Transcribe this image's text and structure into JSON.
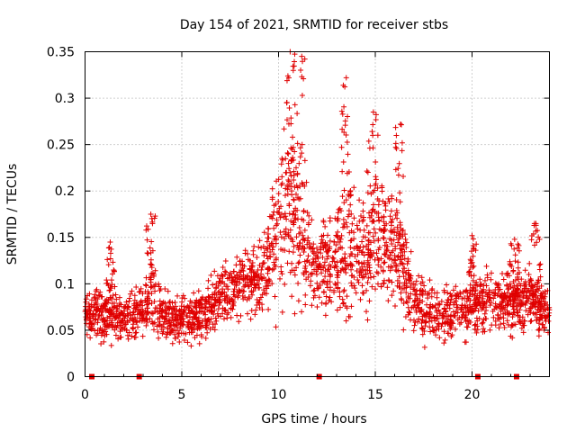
{
  "chart_data": {
    "type": "scatter",
    "title": "Day 154 of 2021, SRMTID for receiver stbs",
    "xlabel": "GPS time / hours",
    "ylabel": "SRMTID / TECUs",
    "xlim": [
      0,
      24
    ],
    "ylim": [
      0,
      0.35
    ],
    "x_ticks": [
      0,
      5,
      10,
      15,
      20
    ],
    "x_tick_labels": [
      "0",
      "5",
      "10",
      "15",
      "20"
    ],
    "y_ticks": [
      0,
      0.05,
      0.1,
      0.15,
      0.2,
      0.25,
      0.3,
      0.35
    ],
    "y_tick_labels": [
      "0",
      "0.05",
      "0.1",
      "0.15",
      "0.2",
      "0.25",
      "0.3",
      "0.35"
    ],
    "grid": true,
    "marker": "+",
    "series": [
      {
        "name": "SRMTID",
        "color": "#e00000",
        "marker": "+",
        "envelope": [
          {
            "x": 0.0,
            "base": 0.07,
            "spread": 0.035
          },
          {
            "x": 1.0,
            "base": 0.065,
            "spread": 0.04
          },
          {
            "x": 2.0,
            "base": 0.065,
            "spread": 0.035
          },
          {
            "x": 3.0,
            "base": 0.07,
            "spread": 0.035
          },
          {
            "x": 3.5,
            "base": 0.09,
            "spread": 0.06
          },
          {
            "x": 4.0,
            "base": 0.065,
            "spread": 0.035
          },
          {
            "x": 5.0,
            "base": 0.06,
            "spread": 0.035
          },
          {
            "x": 6.0,
            "base": 0.065,
            "spread": 0.04
          },
          {
            "x": 7.0,
            "base": 0.085,
            "spread": 0.045
          },
          {
            "x": 8.0,
            "base": 0.1,
            "spread": 0.05
          },
          {
            "x": 9.0,
            "base": 0.105,
            "spread": 0.05
          },
          {
            "x": 10.0,
            "base": 0.16,
            "spread": 0.12
          },
          {
            "x": 10.5,
            "base": 0.19,
            "spread": 0.14
          },
          {
            "x": 11.0,
            "base": 0.15,
            "spread": 0.12
          },
          {
            "x": 12.0,
            "base": 0.11,
            "spread": 0.06
          },
          {
            "x": 13.0,
            "base": 0.13,
            "spread": 0.09
          },
          {
            "x": 14.0,
            "base": 0.13,
            "spread": 0.09
          },
          {
            "x": 15.0,
            "base": 0.15,
            "spread": 0.1
          },
          {
            "x": 16.0,
            "base": 0.14,
            "spread": 0.09
          },
          {
            "x": 17.0,
            "base": 0.08,
            "spread": 0.045
          },
          {
            "x": 18.0,
            "base": 0.065,
            "spread": 0.04
          },
          {
            "x": 19.0,
            "base": 0.07,
            "spread": 0.04
          },
          {
            "x": 20.0,
            "base": 0.075,
            "spread": 0.045
          },
          {
            "x": 21.0,
            "base": 0.085,
            "spread": 0.045
          },
          {
            "x": 22.0,
            "base": 0.08,
            "spread": 0.045
          },
          {
            "x": 23.0,
            "base": 0.085,
            "spread": 0.05
          },
          {
            "x": 24.0,
            "base": 0.065,
            "spread": 0.03
          }
        ],
        "peaks": [
          {
            "x": 10.6,
            "y": 0.35
          },
          {
            "x": 11.2,
            "y": 0.345
          },
          {
            "x": 13.5,
            "y": 0.322
          },
          {
            "x": 14.9,
            "y": 0.285
          },
          {
            "x": 16.3,
            "y": 0.272
          },
          {
            "x": 3.4,
            "y": 0.175
          },
          {
            "x": 23.3,
            "y": 0.165
          },
          {
            "x": 20.0,
            "y": 0.152
          },
          {
            "x": 1.3,
            "y": 0.145
          },
          {
            "x": 22.2,
            "y": 0.148
          }
        ]
      }
    ],
    "bottom_markers": [
      0.35,
      2.8,
      12.1,
      20.3,
      22.3
    ],
    "bottom_marker_color": "#e00000"
  }
}
